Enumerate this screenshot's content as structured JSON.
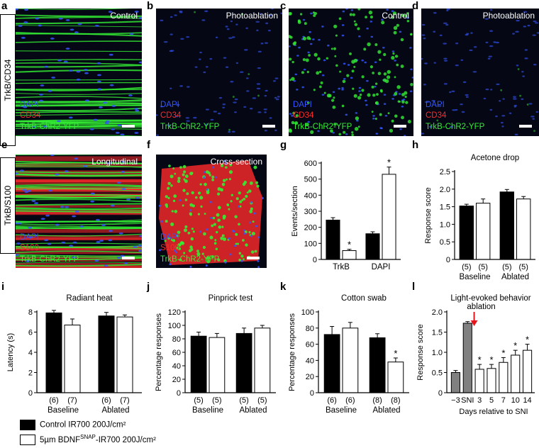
{
  "letters": {
    "a": "a",
    "b": "b",
    "c": "c",
    "d": "d",
    "e": "e",
    "f": "f",
    "g": "g",
    "h": "h",
    "i": "i",
    "j": "j",
    "k": "k",
    "l": "l"
  },
  "side_labels": {
    "top": "TrkB/CD34",
    "bottom": "TrkB/S100"
  },
  "micro": {
    "a": {
      "title": "Control",
      "labels": [
        "DAPI",
        "CD34",
        "TrkB-ChR2-YFP"
      ]
    },
    "b": {
      "title": "Photoablation",
      "labels": [
        "DAPI",
        "CD34",
        "TrkB-ChR2-YFP"
      ]
    },
    "c": {
      "title": "Control",
      "labels": [
        "DAPI",
        "CD34",
        "TrkB-ChR2-YFP"
      ]
    },
    "d": {
      "title": "Photoablation",
      "labels": [
        "DAPI",
        "CD34",
        "TrkB-ChR2-YFP"
      ]
    },
    "e": {
      "title": "Longitudinal",
      "labels": [
        "DAPI",
        "S100",
        "TrkB-ChR2-YFP"
      ]
    },
    "f": {
      "title": "Cross-section",
      "labels": [
        "DAPI",
        "S100",
        "TrkB-ChR2-YFP"
      ]
    }
  },
  "colors": {
    "dapi": "#3355ff",
    "red": "#ff2a2a",
    "green": "#33ee33",
    "control": "#000000",
    "treated": "#ffffff",
    "gray": "#808080",
    "arrow": "#e8141c"
  },
  "legend": {
    "control": "Control IR700 200J/cm²",
    "treated_pre": "5µm BDNF",
    "treated_sup": "SNAP",
    "treated_post": "-IR700 200J/cm²"
  },
  "chart_data": [
    {
      "panel": "g",
      "type": "bar",
      "title": "",
      "ylabel": "Events/section",
      "ylim": [
        0,
        600
      ],
      "yticks": [
        0,
        100,
        200,
        300,
        400,
        500,
        600
      ],
      "groups": [
        "TrkB",
        "DAPI"
      ],
      "series": [
        {
          "name": "Control IR700 200J/cm²",
          "values": [
            245,
            160
          ],
          "errors": [
            15,
            12
          ]
        },
        {
          "name": "5µm BDNFSNAP-IR700 200J/cm²",
          "values": [
            55,
            530
          ],
          "errors": [
            8,
            45
          ]
        }
      ],
      "significance": [
        "*",
        "*"
      ],
      "n_labels": []
    },
    {
      "panel": "h",
      "type": "bar",
      "title": "Acetone drop",
      "ylabel": "Response score",
      "ylim": [
        0,
        2.5
      ],
      "yticks": [
        0,
        0.5,
        1.0,
        1.5,
        2.0,
        2.5
      ],
      "tick_labels": [
        "0",
        "0.5",
        "1.0",
        "1.5",
        "2.0",
        "2.5"
      ],
      "groups": [
        "Baseline",
        "Ablated"
      ],
      "series": [
        {
          "name": "Control IR700 200J/cm²",
          "values": [
            1.52,
            1.92
          ],
          "errors": [
            0.05,
            0.07
          ]
        },
        {
          "name": "5µm BDNFSNAP-IR700 200J/cm²",
          "values": [
            1.6,
            1.72
          ],
          "errors": [
            0.12,
            0.07
          ]
        }
      ],
      "significance": [],
      "n_labels": [
        "(5)",
        "(5)",
        "(5)",
        "(5)"
      ]
    },
    {
      "panel": "i",
      "type": "bar",
      "title": "Radiant heat",
      "ylabel": "Latency (s)",
      "ylim": [
        0,
        8
      ],
      "yticks": [
        0,
        2,
        4,
        6,
        8
      ],
      "groups": [
        "Baseline",
        "Ablated"
      ],
      "series": [
        {
          "name": "Control IR700 200J/cm²",
          "values": [
            7.9,
            7.6
          ],
          "errors": [
            0.25,
            0.35
          ]
        },
        {
          "name": "5µm BDNFSNAP-IR700 200J/cm²",
          "values": [
            6.7,
            7.5
          ],
          "errors": [
            0.6,
            0.2
          ]
        }
      ],
      "significance": [],
      "n_labels": [
        "(6)",
        "(7)",
        "(6)",
        "(7)"
      ]
    },
    {
      "panel": "j",
      "type": "bar",
      "title": "Pinprick test",
      "ylabel": "Percentage responses",
      "ylim": [
        0,
        120
      ],
      "yticks": [
        0,
        20,
        40,
        60,
        80,
        100,
        120
      ],
      "groups": [
        "Baseline",
        "Ablated"
      ],
      "series": [
        {
          "name": "Control IR700 200J/cm²",
          "values": [
            84,
            88
          ],
          "errors": [
            6,
            8
          ]
        },
        {
          "name": "5µm BDNFSNAP-IR700 200J/cm²",
          "values": [
            82,
            96
          ],
          "errors": [
            6,
            4
          ]
        }
      ],
      "significance": [],
      "n_labels": [
        "(5)",
        "(5)",
        "(5)",
        "(5)"
      ]
    },
    {
      "panel": "k",
      "type": "bar",
      "title": "Cotton swab",
      "ylabel": "Percentage responses",
      "ylim": [
        0,
        100
      ],
      "yticks": [
        0,
        20,
        40,
        60,
        80,
        100
      ],
      "groups": [
        "Baseline",
        "Ablated"
      ],
      "series": [
        {
          "name": "Control IR700 200J/cm²",
          "values": [
            72,
            68
          ],
          "errors": [
            10,
            5
          ]
        },
        {
          "name": "5µm BDNFSNAP-IR700 200J/cm²",
          "values": [
            80,
            38
          ],
          "errors": [
            7,
            5
          ]
        }
      ],
      "significance": [
        "",
        "*"
      ],
      "n_labels": [
        "(6)",
        "(6)",
        "(8)",
        "(8)"
      ]
    },
    {
      "panel": "l",
      "type": "bar",
      "title": "Light-evoked behavior",
      "annotation": "ablation",
      "ylabel": "Response score",
      "xlabel": "Days relative to SNI",
      "ylim": [
        0,
        2.0
      ],
      "yticks": [
        0,
        0.5,
        1.0,
        1.5,
        2.0
      ],
      "tick_labels": [
        "0",
        "0.5",
        "1.0",
        "1.5",
        "2.0"
      ],
      "categories": [
        "−3",
        "SNI",
        "3",
        "5",
        "7",
        "10",
        "14"
      ],
      "values": [
        0.5,
        1.72,
        0.58,
        0.6,
        0.75,
        0.93,
        1.05
      ],
      "errors": [
        0.05,
        0.04,
        0.12,
        0.1,
        0.12,
        0.12,
        0.15
      ],
      "fills": [
        "gray",
        "gray",
        "white",
        "white",
        "white",
        "white",
        "white"
      ],
      "significance": [
        "",
        "",
        "*",
        "*",
        "*",
        "*",
        "*"
      ]
    }
  ]
}
